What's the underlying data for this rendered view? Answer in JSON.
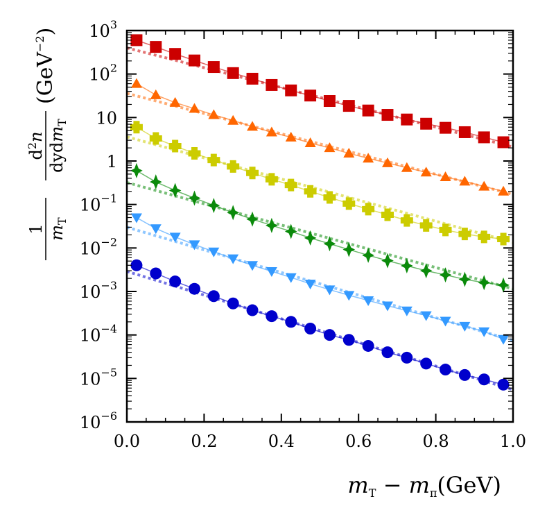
{
  "chart_data": {
    "type": "scatter",
    "title": "",
    "xlabel": "m_T − m_π(GeV)",
    "xlabel_parts": {
      "a": "m",
      "a_sub": "T",
      "minus": " − ",
      "b": "m",
      "b_sub": "π",
      "unit": "(GeV)"
    },
    "ylabel_parts": {
      "one": "1",
      "mT": "m",
      "mT_sub": "T",
      "num": "d",
      "num_sup": "2",
      "num_n": "n",
      "den": "dyd",
      "den_m": "m",
      "den_sub": "T",
      "unit": "(GeV",
      "unit_sup": "−2",
      "unit_close": ")"
    },
    "xlim": [
      0.0,
      1.0
    ],
    "ylim": [
      1e-06,
      1000
    ],
    "yscale": "log",
    "x_ticks": [
      "0.0",
      "0.2",
      "0.4",
      "0.6",
      "0.8",
      "1.0"
    ],
    "y_ticks": [
      {
        "base": "10",
        "exp": "−6"
      },
      {
        "base": "10",
        "exp": "−5"
      },
      {
        "base": "10",
        "exp": "−4"
      },
      {
        "base": "10",
        "exp": "−3"
      },
      {
        "base": "10",
        "exp": "−2"
      },
      {
        "base": "10",
        "exp": "−1"
      },
      {
        "base": "1",
        "exp": ""
      },
      {
        "base": "10",
        "exp": ""
      },
      {
        "base": "10",
        "exp": "2"
      },
      {
        "base": "10",
        "exp": "3"
      }
    ],
    "x": [
      0.025,
      0.075,
      0.125,
      0.175,
      0.225,
      0.275,
      0.325,
      0.375,
      0.425,
      0.475,
      0.525,
      0.575,
      0.625,
      0.675,
      0.725,
      0.775,
      0.825,
      0.875,
      0.925,
      0.975
    ],
    "series": [
      {
        "name": "square",
        "marker": "square",
        "color": "#cc0000",
        "values": [
          600,
          420,
          290,
          205,
          145,
          105,
          78,
          56,
          42,
          32,
          24,
          18.5,
          14.5,
          11.5,
          9,
          7.2,
          5.8,
          4.6,
          3.5,
          2.7
        ],
        "fit": [
          400,
          2.1
        ]
      },
      {
        "name": "triangle-up",
        "marker": "triangle-up",
        "color": "#ff6600",
        "values": [
          60,
          33,
          22,
          16,
          11.5,
          8.5,
          6.2,
          4.6,
          3.5,
          2.6,
          2.0,
          1.5,
          1.15,
          0.9,
          0.7,
          0.55,
          0.43,
          0.34,
          0.26,
          0.2
        ],
        "fit": [
          36,
          0.17
        ]
      },
      {
        "name": "plus",
        "marker": "plus",
        "color": "#cccc00",
        "values": [
          6,
          3.3,
          2.2,
          1.5,
          1.05,
          0.75,
          0.53,
          0.38,
          0.28,
          0.2,
          0.145,
          0.105,
          0.078,
          0.058,
          0.043,
          0.033,
          0.026,
          0.021,
          0.018,
          0.016
        ],
        "fit": [
          3.6,
          0.0135
        ]
      },
      {
        "name": "star",
        "marker": "star",
        "color": "#0a8a0a",
        "values": [
          0.6,
          0.33,
          0.21,
          0.14,
          0.095,
          0.065,
          0.046,
          0.033,
          0.024,
          0.017,
          0.0125,
          0.0092,
          0.0068,
          0.0051,
          0.0039,
          0.003,
          0.0024,
          0.0019,
          0.0016,
          0.0014
        ],
        "fit": [
          0.32,
          0.00115
        ]
      },
      {
        "name": "triangle-down",
        "marker": "triangle-down",
        "color": "#3399ff",
        "values": [
          0.05,
          0.028,
          0.018,
          0.012,
          0.0082,
          0.0057,
          0.004,
          0.0029,
          0.0021,
          0.0015,
          0.0011,
          0.00082,
          0.00062,
          0.00047,
          0.00036,
          0.00028,
          0.00021,
          0.00016,
          0.00012,
          8e-05
        ],
        "fit": [
          0.03,
          7.5e-05
        ]
      },
      {
        "name": "circle",
        "marker": "circle",
        "color": "#0000cc",
        "values": [
          0.004,
          0.0026,
          0.0017,
          0.00115,
          0.00078,
          0.00053,
          0.00037,
          0.00027,
          0.0002,
          0.00014,
          0.0001,
          7.7e-05,
          5.6e-05,
          4e-05,
          3e-05,
          2.2e-05,
          1.6e-05,
          1.2e-05,
          9.5e-06,
          7.2e-06
        ],
        "fit": [
          0.0029,
          5.5e-06
        ]
      }
    ]
  }
}
